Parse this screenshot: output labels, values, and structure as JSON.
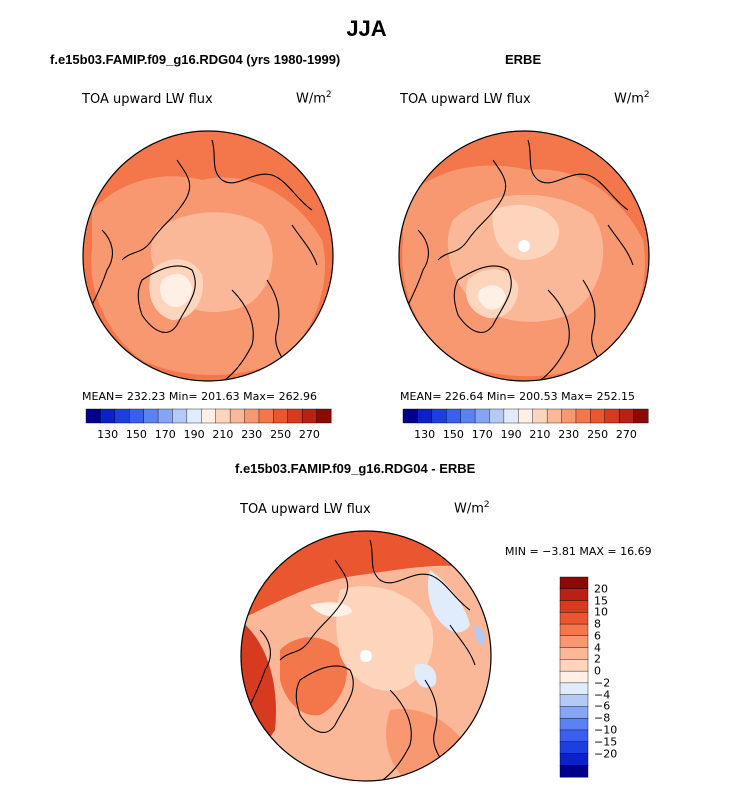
{
  "title": "JJA",
  "panels": {
    "model": {
      "title": "f.e15b03.FAMIP.f09_g16.RDG04 (yrs 1980-1999)",
      "variable": "TOA upward LW flux",
      "units_base": "W/m",
      "units_exp": "2",
      "stats": "MEAN= 232.23  Min= 201.63  Max= 262.96"
    },
    "obs": {
      "title": "ERBE",
      "variable": "TOA upward LW flux",
      "units_base": "W/m",
      "units_exp": "2",
      "stats": "MEAN= 226.64  Min= 200.53  Max= 252.15"
    },
    "diff": {
      "title": "f.e15b03.FAMIP.f09_g16.RDG04 - ERBE",
      "variable": "TOA upward LW flux",
      "units_base": "W/m",
      "units_exp": "2",
      "stats": "MIN =  −3.81 MAX =  16.69"
    }
  },
  "colorbar_abs": {
    "ticks": [
      "130",
      "150",
      "170",
      "190",
      "210",
      "230",
      "250",
      "270"
    ],
    "colors": [
      "#00008c",
      "#0b22c9",
      "#1c3fe0",
      "#3a5fee",
      "#5b82f2",
      "#86a5f5",
      "#b3c9f6",
      "#e0ecfb",
      "#fff0e6",
      "#fdd5bd",
      "#fbb898",
      "#f89870",
      "#f3774b",
      "#ea5630",
      "#d63a1f",
      "#b82214",
      "#8c0a06"
    ]
  },
  "colorbar_diff": {
    "ticks": [
      "20",
      "15",
      "10",
      "8",
      "6",
      "4",
      "2",
      "0",
      "−2",
      "−4",
      "−6",
      "−8",
      "−10",
      "−15",
      "−20"
    ],
    "colors": [
      "#8c0a06",
      "#b82214",
      "#d63a1f",
      "#ea5630",
      "#f3774b",
      "#f89870",
      "#fbb898",
      "#fdd5bd",
      "#fff0e6",
      "#e0ecfb",
      "#b3c9f6",
      "#86a5f5",
      "#5b82f2",
      "#3a5fee",
      "#1c3fe0",
      "#0b22c9",
      "#00008c"
    ]
  },
  "map_colors": {
    "ocean_warm": "#f3774b",
    "mid": "#f89870",
    "light": "#fbb898",
    "pale": "#fdd5bd",
    "palest": "#fff0e6",
    "hot": "#ea5630",
    "coast": "#000000"
  }
}
